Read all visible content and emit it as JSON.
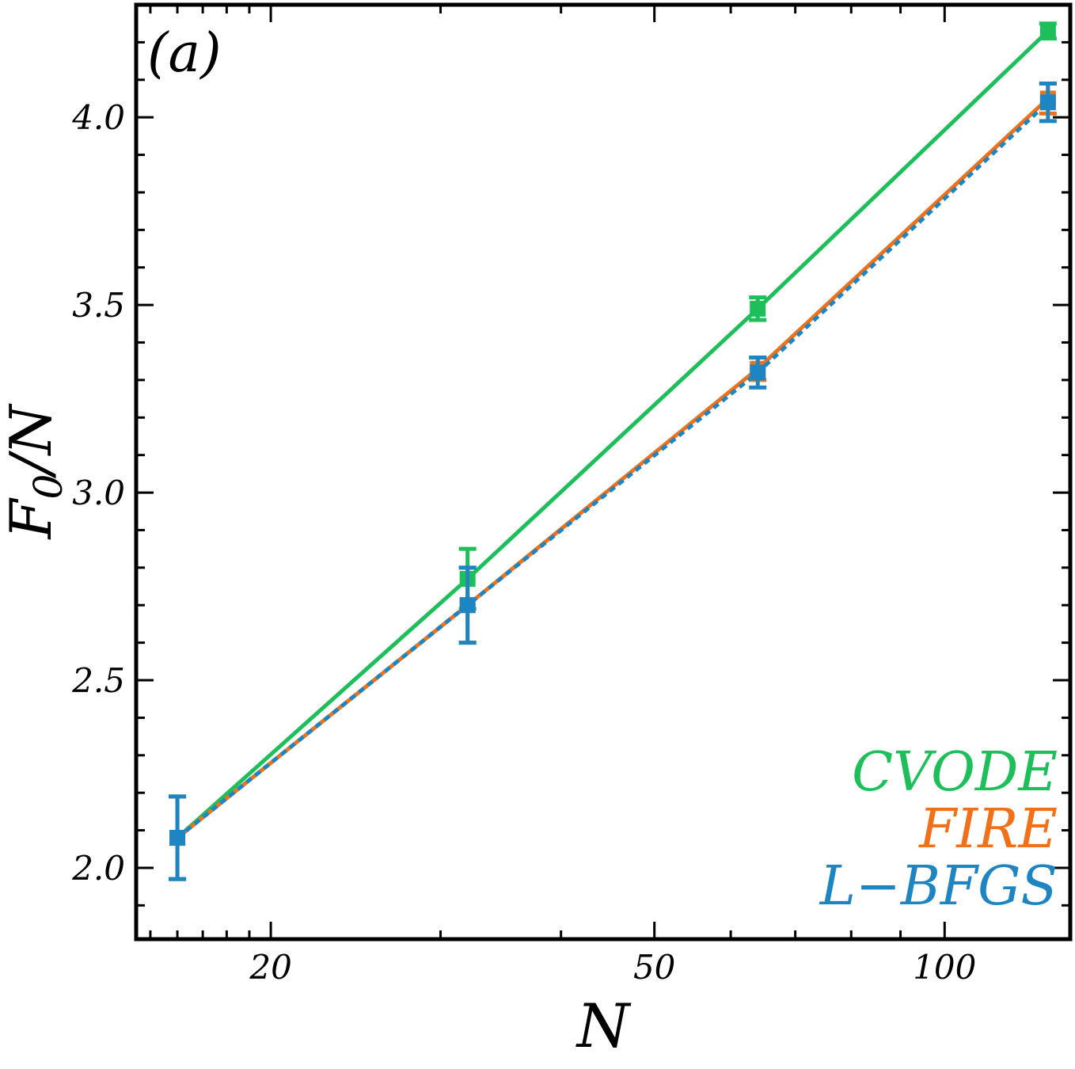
{
  "chart_data": {
    "type": "line",
    "panel_label": "(a)",
    "xlabel": "N",
    "ylabel": "F",
    "ylabel_sub": "0",
    "ylabel_tail": "/N",
    "xscale": "log",
    "xlim": [
      14.5,
      135
    ],
    "ylim": [
      1.81,
      4.3
    ],
    "x_ticks": [
      {
        "value": 20,
        "label": "20"
      },
      {
        "value": 50,
        "label": "50"
      },
      {
        "value": 100,
        "label": "100"
      }
    ],
    "y_ticks": [
      {
        "value": 2.0,
        "label": "2.0"
      },
      {
        "value": 2.5,
        "label": "2.5"
      },
      {
        "value": 3.0,
        "label": "3.0"
      },
      {
        "value": 3.5,
        "label": "3.5"
      },
      {
        "value": 4.0,
        "label": "4.0"
      }
    ],
    "x": [
      16,
      32,
      64,
      128
    ],
    "legend_position": "bottom-right",
    "series": [
      {
        "name": "CVODE",
        "color": "#1DBF5A",
        "line_style": "solid",
        "y": [
          2.08,
          2.77,
          3.49,
          4.23
        ],
        "err": [
          0.11,
          0.08,
          0.03,
          0.02
        ]
      },
      {
        "name": "FIRE",
        "color": "#F0711A",
        "line_style": "solid",
        "y": [
          2.08,
          2.7,
          3.33,
          4.05
        ],
        "err": [
          0.11,
          0.1,
          0.03,
          0.04
        ]
      },
      {
        "name": "L−BFGS",
        "color": "#1D86C2",
        "line_style": "dashed",
        "y": [
          2.08,
          2.7,
          3.32,
          4.04
        ],
        "err": [
          0.11,
          0.1,
          0.04,
          0.05
        ]
      }
    ]
  }
}
